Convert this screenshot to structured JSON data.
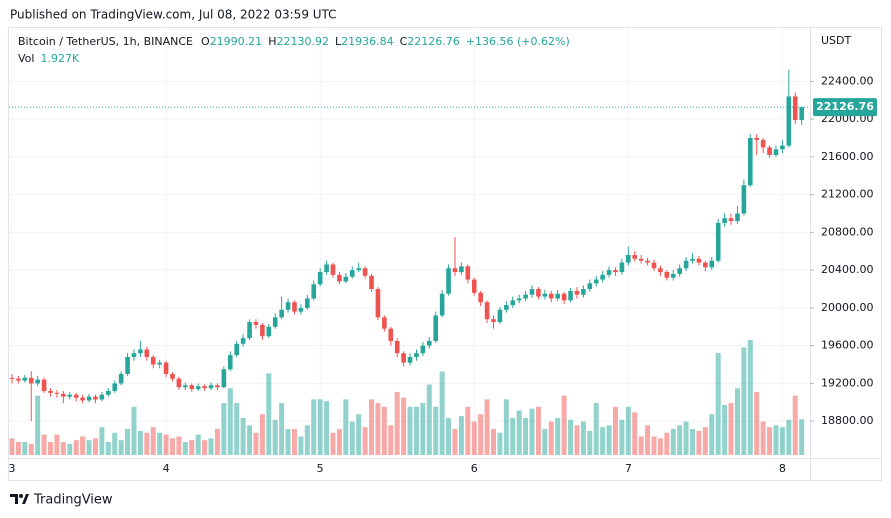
{
  "header": {
    "published": "Published on TradingView.com, Jul 08, 2022 03:59 UTC",
    "brand": "TradingView"
  },
  "chart_data": {
    "type": "candlestick",
    "title": "Bitcoin / TetherUS, 1h, BINANCE",
    "ohlc_letters": [
      "O",
      "H",
      "L",
      "C"
    ],
    "change": "+136.56 (+0.62%)",
    "volume_name": "Vol",
    "volume_label": "1.927K",
    "unit": "USDT",
    "up_color": "#26a69a",
    "down_color": "#ef5350",
    "grid": true,
    "ylim": [
      18410,
      22965
    ],
    "yticks": [
      {
        "value": 18800,
        "label": "18800.00"
      },
      {
        "value": 19200,
        "label": "19200.00"
      },
      {
        "value": 19600,
        "label": "19600.00"
      },
      {
        "value": 20000,
        "label": "20000.00"
      },
      {
        "value": 20400,
        "label": "20400.00"
      },
      {
        "value": 20800,
        "label": "20800.00"
      },
      {
        "value": 21200,
        "label": "21200.00"
      },
      {
        "value": 21600,
        "label": "21600.00"
      },
      {
        "value": 22000,
        "label": "22000.00"
      },
      {
        "value": 22400,
        "label": "22400.00"
      }
    ],
    "categories": [
      "3",
      null,
      null,
      null,
      null,
      null,
      null,
      null,
      null,
      null,
      null,
      null,
      null,
      null,
      null,
      null,
      null,
      null,
      null,
      null,
      null,
      null,
      null,
      null,
      "4",
      null,
      null,
      null,
      null,
      null,
      null,
      null,
      null,
      null,
      null,
      null,
      null,
      null,
      null,
      null,
      null,
      null,
      null,
      null,
      null,
      null,
      null,
      null,
      "5",
      null,
      null,
      null,
      null,
      null,
      null,
      null,
      null,
      null,
      null,
      null,
      null,
      null,
      null,
      null,
      null,
      null,
      null,
      null,
      null,
      null,
      null,
      null,
      "6",
      null,
      null,
      null,
      null,
      null,
      null,
      null,
      null,
      null,
      null,
      null,
      null,
      null,
      null,
      null,
      null,
      null,
      null,
      null,
      null,
      null,
      null,
      null,
      "7",
      null,
      null,
      null,
      null,
      null,
      null,
      null,
      null,
      null,
      null,
      null,
      null,
      null,
      null,
      null,
      null,
      null,
      null,
      null,
      null,
      null,
      null,
      null,
      "8",
      null,
      null,
      null
    ],
    "open": [
      19260,
      19250,
      19230,
      19260,
      19200,
      19240,
      19120,
      19100,
      19090,
      19060,
      19080,
      19050,
      19020,
      19060,
      19030,
      19080,
      19120,
      19200,
      19300,
      19480,
      19520,
      19560,
      19480,
      19400,
      19420,
      19300,
      19250,
      19160,
      19180,
      19140,
      19170,
      19150,
      19180,
      19160,
      19350,
      19500,
      19620,
      19680,
      19850,
      19820,
      19700,
      19800,
      19900,
      19980,
      20060,
      19960,
      20000,
      20100,
      20250,
      20380,
      20460,
      20350,
      20280,
      20330,
      20400,
      20420,
      20340,
      20200,
      19900,
      19780,
      19650,
      19520,
      19420,
      19480,
      19520,
      19600,
      19650,
      19920,
      20150,
      20420,
      20380,
      20440,
      20300,
      20160,
      20060,
      19880,
      19850,
      19980,
      20030,
      20080,
      20100,
      20140,
      20200,
      20120,
      20150,
      20100,
      20150,
      20080,
      20180,
      20140,
      20200,
      20260,
      20300,
      20350,
      20400,
      20380,
      20480,
      20560,
      20520,
      20500,
      20480,
      20420,
      20380,
      20320,
      20360,
      20420,
      20500,
      20520,
      20480,
      20430,
      20500,
      20900,
      20950,
      20920,
      21000,
      21300,
      21800,
      21780,
      21700,
      21620,
      21680,
      21720,
      22240,
      21990.21
    ],
    "high": [
      19300,
      19280,
      19290,
      19330,
      19280,
      19260,
      19150,
      19130,
      19120,
      19110,
      19100,
      19080,
      19090,
      19080,
      19110,
      19150,
      19230,
      19330,
      19520,
      19560,
      19650,
      19590,
      19500,
      19450,
      19440,
      19320,
      19270,
      19210,
      19200,
      19200,
      19190,
      19210,
      19200,
      19380,
      19540,
      19650,
      19720,
      19880,
      19880,
      19840,
      19830,
      19940,
      20120,
      20100,
      20080,
      20040,
      20140,
      20290,
      20420,
      20500,
      20480,
      20380,
      20370,
      20440,
      20480,
      20440,
      20360,
      20220,
      19920,
      19800,
      19680,
      19540,
      19520,
      19560,
      19640,
      19690,
      19960,
      20190,
      20460,
      20750,
      20480,
      20460,
      20320,
      20180,
      20080,
      19920,
      20010,
      20070,
      20120,
      20140,
      20180,
      20240,
      20220,
      20190,
      20180,
      20190,
      20170,
      20210,
      20220,
      20240,
      20300,
      20340,
      20390,
      20440,
      20430,
      20520,
      20650,
      20600,
      20560,
      20530,
      20510,
      20450,
      20400,
      20400,
      20460,
      20540,
      20580,
      20550,
      20500,
      20540,
      20940,
      21000,
      21000,
      21080,
      21360,
      21840,
      21840,
      21800,
      21720,
      21720,
      21780,
      22520,
      22280,
      22130.92
    ],
    "low": [
      19200,
      19200,
      19210,
      18800,
      19170,
      19100,
      19060,
      19050,
      18990,
      19030,
      19010,
      18990,
      19000,
      18990,
      19010,
      19060,
      19100,
      19180,
      19280,
      19440,
      19480,
      19440,
      19360,
      19360,
      19270,
      19220,
      19130,
      19130,
      19110,
      19120,
      19120,
      19130,
      19130,
      19150,
      19330,
      19480,
      19590,
      19660,
      19780,
      19660,
      19680,
      19780,
      19880,
      19950,
      19930,
      19930,
      19980,
      20080,
      20230,
      20350,
      20320,
      20250,
      20260,
      20310,
      20380,
      20310,
      20170,
      19870,
      19750,
      19600,
      19480,
      19380,
      19390,
      19440,
      19490,
      19570,
      19630,
      19900,
      20130,
      20340,
      20350,
      20260,
      20130,
      20020,
      19840,
      19780,
      19830,
      19950,
      20000,
      20050,
      20070,
      20110,
      20090,
      20090,
      20060,
      20070,
      20040,
      20060,
      20100,
      20110,
      20170,
      20230,
      20270,
      20320,
      20340,
      20350,
      20450,
      20490,
      20470,
      20450,
      20390,
      20340,
      20290,
      20290,
      20330,
      20390,
      20470,
      20450,
      20390,
      20400,
      20480,
      20860,
      20880,
      20890,
      20980,
      21280,
      21620,
      21640,
      21590,
      21600,
      21640,
      21700,
      21950,
      21936.84
    ],
    "close": [
      19250,
      19230,
      19260,
      19200,
      19240,
      19120,
      19100,
      19090,
      19060,
      19080,
      19050,
      19020,
      19060,
      19030,
      19080,
      19120,
      19200,
      19300,
      19480,
      19520,
      19560,
      19480,
      19400,
      19420,
      19300,
      19250,
      19160,
      19180,
      19140,
      19170,
      19150,
      19180,
      19160,
      19350,
      19500,
      19620,
      19680,
      19850,
      19820,
      19700,
      19800,
      19900,
      19980,
      20060,
      19960,
      20000,
      20100,
      20250,
      20380,
      20460,
      20350,
      20280,
      20330,
      20400,
      20420,
      20340,
      20200,
      19900,
      19780,
      19650,
      19520,
      19420,
      19480,
      19520,
      19600,
      19650,
      19920,
      20150,
      20420,
      20380,
      20440,
      20300,
      20160,
      20060,
      19880,
      19850,
      19980,
      20030,
      20080,
      20100,
      20140,
      20200,
      20120,
      20150,
      20100,
      20150,
      20080,
      20180,
      20140,
      20200,
      20260,
      20300,
      20350,
      20400,
      20380,
      20480,
      20560,
      20520,
      20500,
      20480,
      20420,
      20380,
      20320,
      20360,
      20420,
      20500,
      20520,
      20480,
      20430,
      20500,
      20900,
      20950,
      20920,
      21000,
      21300,
      21800,
      21780,
      21700,
      21620,
      21680,
      21720,
      22240,
      21990.21,
      22126.76
    ],
    "volume": [
      900,
      700,
      700,
      600,
      3200,
      1100,
      700,
      1100,
      700,
      600,
      800,
      1000,
      800,
      900,
      1500,
      700,
      1200,
      800,
      1400,
      2600,
      1300,
      1200,
      1500,
      1200,
      1100,
      900,
      1000,
      700,
      800,
      1100,
      800,
      900,
      1400,
      2800,
      3600,
      2800,
      2000,
      1600,
      1200,
      2200,
      4400,
      1900,
      2800,
      1400,
      1400,
      1000,
      1600,
      3000,
      3000,
      2900,
      1200,
      1400,
      3000,
      1800,
      2200,
      1500,
      3000,
      2800,
      2600,
      1600,
      3400,
      3100,
      2600,
      2600,
      2800,
      3800,
      2600,
      4500,
      2000,
      1400,
      2100,
      2600,
      1800,
      2200,
      3000,
      1400,
      1200,
      3000,
      2000,
      2400,
      2000,
      2500,
      2600,
      1400,
      1800,
      2000,
      3200,
      1900,
      1600,
      1800,
      1300,
      2800,
      1500,
      1600,
      2600,
      1900,
      2600,
      2300,
      1000,
      1600,
      1000,
      900,
      1200,
      1400,
      1600,
      1800,
      1400,
      1300,
      1500,
      2200,
      5500,
      2700,
      2800,
      3600,
      5800,
      6200,
      3400,
      1800,
      1500,
      1600,
      1500,
      1900,
      3200,
      1927
    ]
  }
}
